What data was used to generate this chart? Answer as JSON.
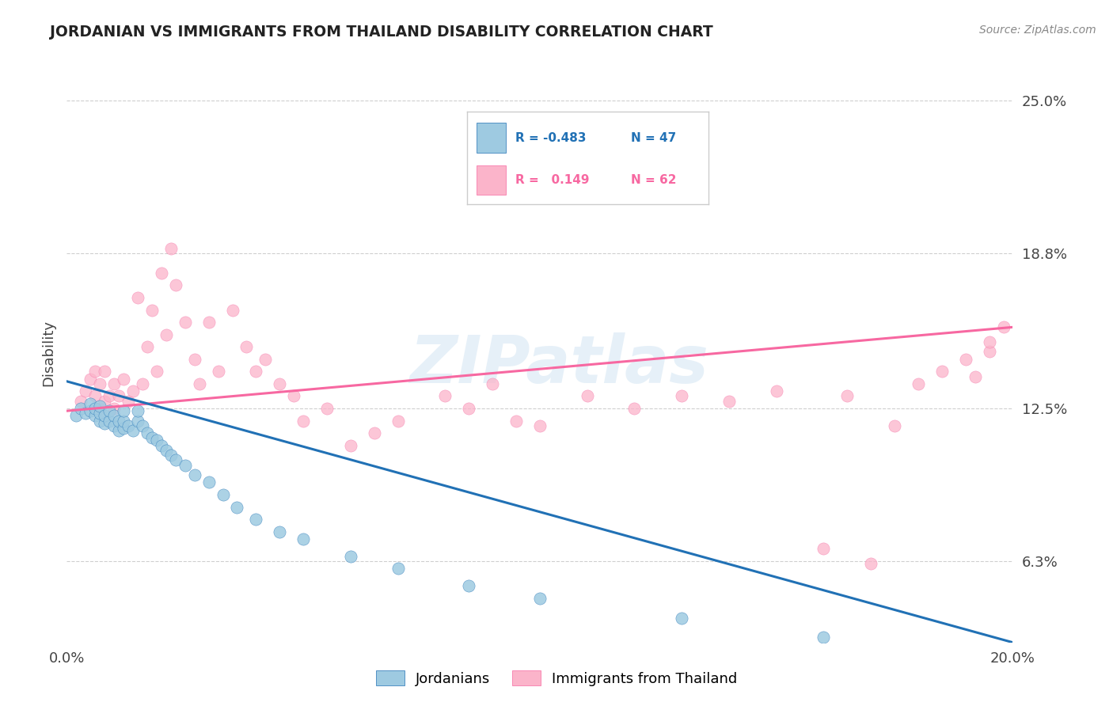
{
  "title": "JORDANIAN VS IMMIGRANTS FROM THAILAND DISABILITY CORRELATION CHART",
  "source_text": "Source: ZipAtlas.com",
  "watermark": "ZIPatlas",
  "ylabel": "Disability",
  "xmin": 0.0,
  "xmax": 0.2,
  "ymin": 0.03,
  "ymax": 0.265,
  "yticks": [
    0.063,
    0.125,
    0.188,
    0.25
  ],
  "ytick_labels": [
    "6.3%",
    "12.5%",
    "18.8%",
    "25.0%"
  ],
  "xticks": [
    0.0,
    0.05,
    0.1,
    0.15,
    0.2
  ],
  "xtick_labels": [
    "0.0%",
    "",
    "",
    "",
    "20.0%"
  ],
  "color_blue": "#9ecae1",
  "color_pink": "#fbb4ca",
  "color_blue_line": "#2171b5",
  "color_pink_line": "#f768a1",
  "jordanians_x": [
    0.002,
    0.003,
    0.004,
    0.005,
    0.005,
    0.006,
    0.006,
    0.007,
    0.007,
    0.007,
    0.008,
    0.008,
    0.009,
    0.009,
    0.01,
    0.01,
    0.011,
    0.011,
    0.012,
    0.012,
    0.012,
    0.013,
    0.014,
    0.015,
    0.015,
    0.016,
    0.017,
    0.018,
    0.019,
    0.02,
    0.021,
    0.022,
    0.023,
    0.025,
    0.027,
    0.03,
    0.033,
    0.036,
    0.04,
    0.045,
    0.05,
    0.06,
    0.07,
    0.085,
    0.1,
    0.13,
    0.16
  ],
  "jordanians_y": [
    0.122,
    0.125,
    0.123,
    0.124,
    0.127,
    0.122,
    0.125,
    0.12,
    0.123,
    0.126,
    0.119,
    0.122,
    0.12,
    0.124,
    0.118,
    0.122,
    0.116,
    0.12,
    0.117,
    0.12,
    0.124,
    0.118,
    0.116,
    0.12,
    0.124,
    0.118,
    0.115,
    0.113,
    0.112,
    0.11,
    0.108,
    0.106,
    0.104,
    0.102,
    0.098,
    0.095,
    0.09,
    0.085,
    0.08,
    0.075,
    0.072,
    0.065,
    0.06,
    0.053,
    0.048,
    0.04,
    0.032
  ],
  "thailand_x": [
    0.003,
    0.004,
    0.005,
    0.006,
    0.006,
    0.007,
    0.007,
    0.008,
    0.008,
    0.009,
    0.01,
    0.01,
    0.011,
    0.012,
    0.013,
    0.014,
    0.015,
    0.016,
    0.017,
    0.018,
    0.019,
    0.02,
    0.021,
    0.022,
    0.023,
    0.025,
    0.027,
    0.028,
    0.03,
    0.032,
    0.035,
    0.038,
    0.04,
    0.042,
    0.045,
    0.048,
    0.05,
    0.055,
    0.06,
    0.065,
    0.07,
    0.08,
    0.085,
    0.09,
    0.095,
    0.1,
    0.11,
    0.12,
    0.13,
    0.14,
    0.15,
    0.16,
    0.165,
    0.17,
    0.175,
    0.18,
    0.185,
    0.19,
    0.192,
    0.195,
    0.195,
    0.198
  ],
  "thailand_y": [
    0.128,
    0.132,
    0.137,
    0.13,
    0.14,
    0.125,
    0.135,
    0.128,
    0.14,
    0.13,
    0.125,
    0.135,
    0.13,
    0.137,
    0.128,
    0.132,
    0.17,
    0.135,
    0.15,
    0.165,
    0.14,
    0.18,
    0.155,
    0.19,
    0.175,
    0.16,
    0.145,
    0.135,
    0.16,
    0.14,
    0.165,
    0.15,
    0.14,
    0.145,
    0.135,
    0.13,
    0.12,
    0.125,
    0.11,
    0.115,
    0.12,
    0.13,
    0.125,
    0.135,
    0.12,
    0.118,
    0.13,
    0.125,
    0.13,
    0.128,
    0.132,
    0.068,
    0.13,
    0.062,
    0.118,
    0.135,
    0.14,
    0.145,
    0.138,
    0.148,
    0.152,
    0.158
  ],
  "blue_line_x": [
    0.0,
    0.2
  ],
  "blue_line_y": [
    0.136,
    0.03
  ],
  "pink_line_x": [
    0.0,
    0.2
  ],
  "pink_line_y": [
    0.124,
    0.158
  ],
  "background_color": "#ffffff",
  "grid_color": "#bbbbbb",
  "title_color": "#222222",
  "label_color": "#444444"
}
